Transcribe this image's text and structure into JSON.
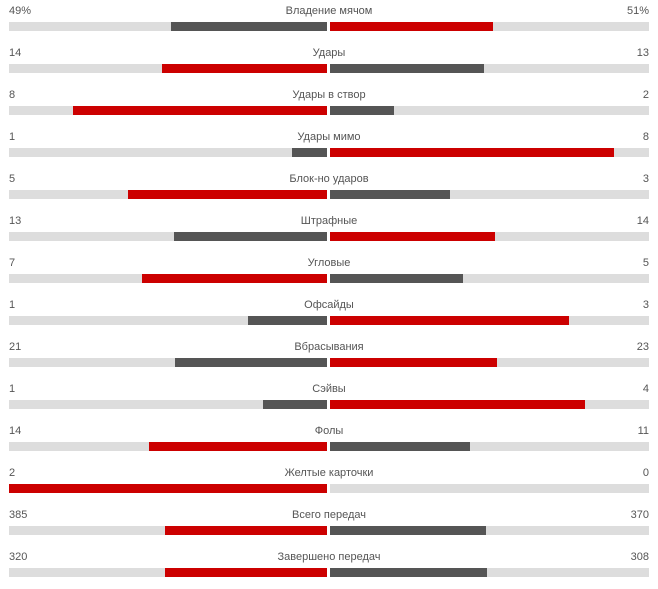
{
  "colors": {
    "leader": "#cc0000",
    "trailer": "#555555",
    "track": "#dddddd"
  },
  "stats": [
    {
      "name": "Владение мячом",
      "home": "49%",
      "away": "51%",
      "home_value": 49,
      "away_value": 51
    },
    {
      "name": "Удары",
      "home": "14",
      "away": "13",
      "home_value": 14,
      "away_value": 13
    },
    {
      "name": "Удары в створ",
      "home": "8",
      "away": "2",
      "home_value": 8,
      "away_value": 2
    },
    {
      "name": "Удары мимо",
      "home": "1",
      "away": "8",
      "home_value": 1,
      "away_value": 8
    },
    {
      "name": "Блок-но ударов",
      "home": "5",
      "away": "3",
      "home_value": 5,
      "away_value": 3
    },
    {
      "name": "Штрафные",
      "home": "13",
      "away": "14",
      "home_value": 13,
      "away_value": 14
    },
    {
      "name": "Угловые",
      "home": "7",
      "away": "5",
      "home_value": 7,
      "away_value": 5
    },
    {
      "name": "Офсайды",
      "home": "1",
      "away": "3",
      "home_value": 1,
      "away_value": 3
    },
    {
      "name": "Вбрасывания",
      "home": "21",
      "away": "23",
      "home_value": 21,
      "away_value": 23
    },
    {
      "name": "Сэйвы",
      "home": "1",
      "away": "4",
      "home_value": 1,
      "away_value": 4
    },
    {
      "name": "Фолы",
      "home": "14",
      "away": "11",
      "home_value": 14,
      "away_value": 11
    },
    {
      "name": "Желтые карточки",
      "home": "2",
      "away": "0",
      "home_value": 2,
      "away_value": 0
    },
    {
      "name": "Всего передач",
      "home": "385",
      "away": "370",
      "home_value": 385,
      "away_value": 370
    },
    {
      "name": "Завершено передач",
      "home": "320",
      "away": "308",
      "home_value": 320,
      "away_value": 308
    }
  ]
}
